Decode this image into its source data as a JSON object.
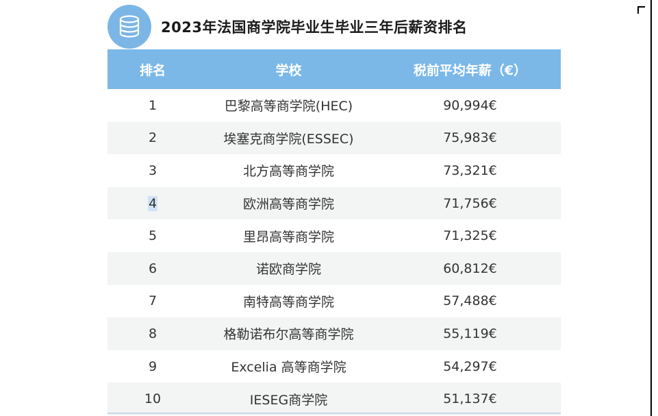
{
  "title": "2023年法国商学院毕业生毕业三年后薪资排名",
  "logo_icon": "database-icon",
  "colors": {
    "header_bg": "#7bb8e8",
    "logo_bg": "#7bb6e6",
    "stripe": "#f3f4f4"
  },
  "headers": {
    "rank": "排名",
    "school": "学校",
    "salary": "税前平均年薪（€）"
  },
  "rows": [
    {
      "rank": "1",
      "school": "巴黎高等商学院(HEC)",
      "salary": "90,994€"
    },
    {
      "rank": "2",
      "school": "埃塞克商学院(ESSEC)",
      "salary": "75,983€"
    },
    {
      "rank": "3",
      "school": "北方高等商学院",
      "salary": "73,321€"
    },
    {
      "rank": "4",
      "school": "欧洲高等商学院",
      "salary": "71,756€"
    },
    {
      "rank": "5",
      "school": "里昂高等商学院",
      "salary": "71,325€"
    },
    {
      "rank": "6",
      "school": "诺欧商学院",
      "salary": "60,812€"
    },
    {
      "rank": "7",
      "school": "南特高等商学院",
      "salary": "57,488€"
    },
    {
      "rank": "8",
      "school": "格勒诺布尔高等商学院",
      "salary": "55,119€"
    },
    {
      "rank": "9",
      "school": "Excelia 高等商学院",
      "salary": "54,297€"
    },
    {
      "rank": "10",
      "school": "IESEG商学院",
      "salary": "51,137€"
    }
  ]
}
